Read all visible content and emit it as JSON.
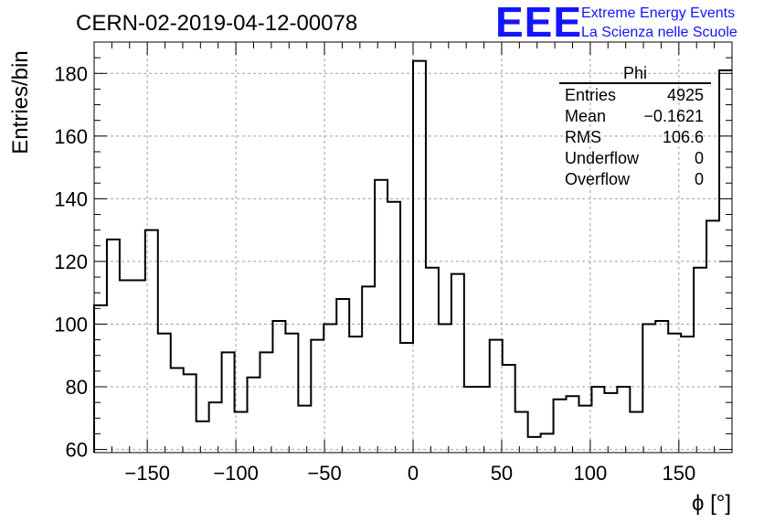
{
  "header": {
    "run_title": "CERN-02-2019-04-12-00078",
    "logo_text": "EEE",
    "logo_line1": "Extreme Energy Events",
    "logo_line2": "La Scienza nelle Scuole"
  },
  "stats": {
    "name": "Phi",
    "rows": [
      {
        "label": "Entries",
        "value": "4925"
      },
      {
        "label": "Mean",
        "value": "−0.1621"
      },
      {
        "label": "RMS",
        "value": "106.6"
      },
      {
        "label": "Underflow",
        "value": "0"
      },
      {
        "label": "Overflow",
        "value": "0"
      }
    ]
  },
  "chart_data": {
    "type": "histogram",
    "title": "CERN-02-2019-04-12-00078",
    "xlabel": "ϕ [°]",
    "ylabel": "Entries/bin",
    "xlim": [
      -180,
      180
    ],
    "ylim": [
      59,
      190
    ],
    "bin_width": 7.2,
    "x_ticks": [
      -150,
      -100,
      -50,
      0,
      50,
      100,
      150
    ],
    "x_tick_labels": [
      "−150",
      "−100",
      "−50",
      "0",
      "50",
      "100",
      "150"
    ],
    "y_ticks": [
      60,
      80,
      100,
      120,
      140,
      160,
      180
    ],
    "y_tick_labels": [
      "60",
      "80",
      "100",
      "120",
      "140",
      "160",
      "180"
    ],
    "grid": true,
    "legend": "top-right",
    "values": [
      106,
      127,
      114,
      114,
      130,
      97,
      86,
      84,
      69,
      75,
      91,
      72,
      83,
      91,
      101,
      97,
      74,
      95,
      100,
      108,
      96,
      112,
      146,
      139,
      94,
      184,
      118,
      100,
      116,
      80,
      80,
      95,
      87,
      72,
      64,
      65,
      76,
      77,
      74,
      80,
      78,
      80,
      72,
      100,
      101,
      97,
      96,
      118,
      133,
      181
    ]
  }
}
